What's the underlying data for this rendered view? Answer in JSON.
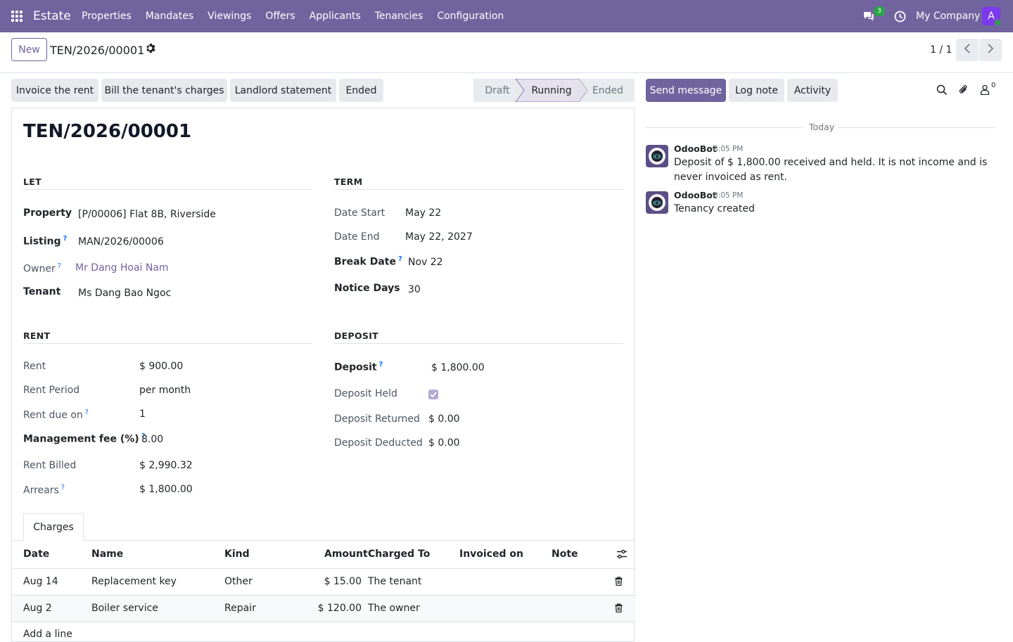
{
  "navbar": {
    "brand": "Estate",
    "menu": [
      "Properties",
      "Mandates",
      "Viewings",
      "Offers",
      "Applicants",
      "Tenancies",
      "Configuration"
    ],
    "chat_count": "3",
    "company": "My Company",
    "avatar_letter": "A",
    "accent": "#71639e"
  },
  "control_panel": {
    "new_label": "New",
    "breadcrumb": "TEN/2026/00001",
    "pager": "1 / 1"
  },
  "actions": {
    "buttons": [
      "Invoice the rent",
      "Bill the tenant's charges",
      "Landlord statement",
      "Ended"
    ],
    "status": [
      "Draft",
      "Running",
      "Ended"
    ],
    "current_status": "Running"
  },
  "form": {
    "title": "TEN/2026/00001",
    "let": {
      "heading": "LET",
      "property_label": "Property",
      "property": "[P/00006] Flat 8B, Riverside",
      "listing_label": "Listing",
      "listing": "MAN/2026/00006",
      "owner_label": "Owner",
      "owner": "Mr Dang Hoai Nam",
      "tenant_label": "Tenant",
      "tenant": "Ms Dang Bao Ngoc"
    },
    "term": {
      "heading": "TERM",
      "date_start_label": "Date Start",
      "date_start": "May 22",
      "date_end_label": "Date End",
      "date_end": "May 22, 2027",
      "break_date_label": "Break Date",
      "break_date": "Nov 22",
      "notice_days_label": "Notice Days",
      "notice_days": "30"
    },
    "rent": {
      "heading": "RENT",
      "rent_label": "Rent",
      "rent": "$ 900.00",
      "period_label": "Rent Period",
      "period": "per month",
      "due_label": "Rent due on",
      "due": "1",
      "fee_label": "Management fee (%)",
      "fee": "8.00",
      "billed_label": "Rent Billed",
      "billed": "$ 2,990.32",
      "arrears_label": "Arrears",
      "arrears": "$ 1,800.00"
    },
    "deposit": {
      "heading": "DEPOSIT",
      "deposit_label": "Deposit",
      "deposit": "$ 1,800.00",
      "held_label": "Deposit Held",
      "held": true,
      "returned_label": "Deposit Returned",
      "returned": "$ 0.00",
      "deducted_label": "Deposit Deducted",
      "deducted": "$ 0.00"
    }
  },
  "charges": {
    "tab_label": "Charges",
    "columns": [
      "Date",
      "Name",
      "Kind",
      "Amount",
      "Charged To",
      "Invoiced on",
      "Note"
    ],
    "rows": [
      {
        "date": "Aug 14",
        "name": "Replacement key",
        "kind": "Other",
        "amount": "$ 15.00",
        "charged_to": "The tenant",
        "invoiced_on": "",
        "note": ""
      },
      {
        "date": "Aug 2",
        "name": "Boiler service",
        "kind": "Repair",
        "amount": "$ 120.00",
        "charged_to": "The owner",
        "invoiced_on": "",
        "note": ""
      }
    ],
    "add_line": "Add a line"
  },
  "chatter": {
    "send_message": "Send message",
    "log_note": "Log note",
    "activity": "Activity",
    "followers_count": "0",
    "day_label": "Today",
    "messages": [
      {
        "author": "OdooBot",
        "time": "8:05 PM",
        "body": "Deposit of $ 1,800.00 received and held. It is not income and is never invoiced as rent."
      },
      {
        "author": "OdooBot",
        "time": "8:05 PM",
        "body": "Tenancy created"
      }
    ]
  }
}
